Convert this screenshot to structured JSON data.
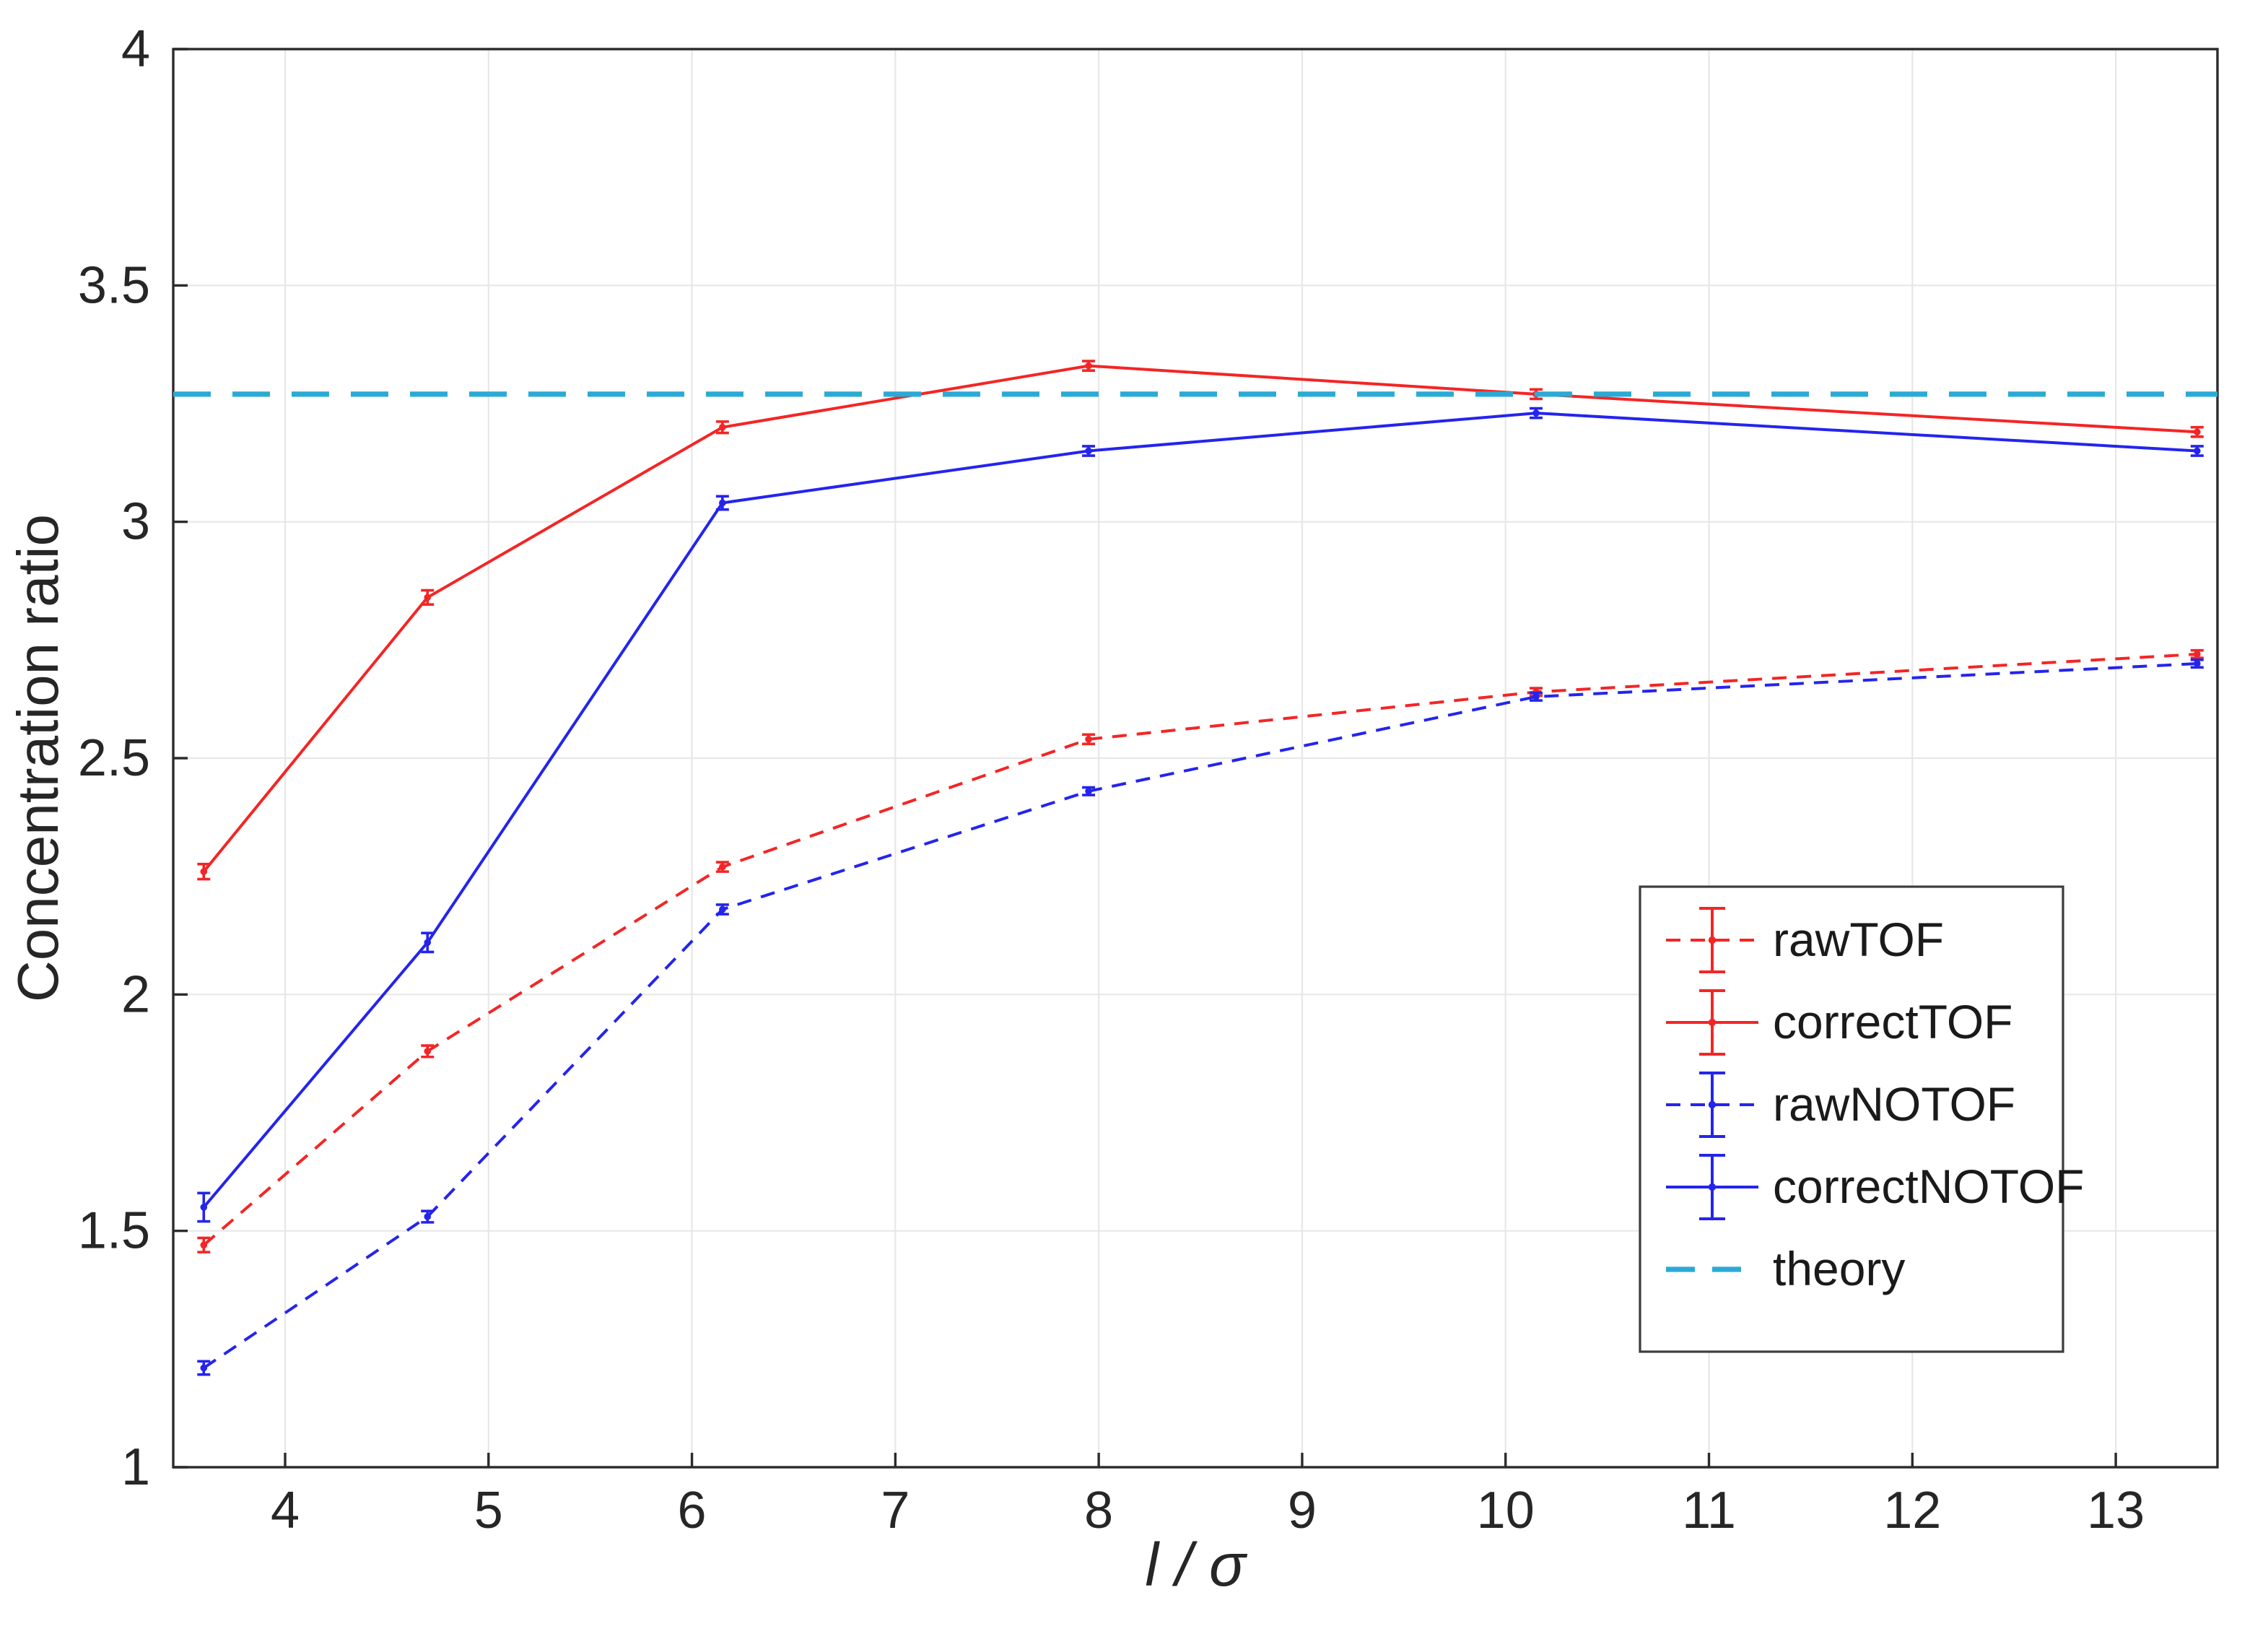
{
  "figure": {
    "background": "#ffffff",
    "axis_color": "#2b2b2b",
    "grid_color": "#e7e7e7",
    "tick_label_color": "#262626"
  },
  "chart_data": {
    "type": "line",
    "title": "",
    "xlabel": "l / σ",
    "ylabel": "Concentration ratio",
    "xlim": [
      3.45,
      13.5
    ],
    "ylim": [
      1,
      4
    ],
    "xticks": [
      4,
      5,
      6,
      7,
      8,
      9,
      10,
      11,
      12,
      13
    ],
    "yticks": [
      1,
      1.5,
      2,
      2.5,
      3,
      3.5,
      4
    ],
    "grid": true,
    "legend_position": "lower right",
    "x": [
      3.6,
      4.7,
      6.15,
      7.95,
      10.15,
      13.4
    ],
    "series": [
      {
        "name": "rawTOF",
        "color": "#f42525",
        "style": "dashed",
        "marker": "point",
        "values": [
          1.47,
          1.88,
          2.27,
          2.54,
          2.64,
          2.72
        ],
        "errors": [
          0.015,
          0.012,
          0.01,
          0.01,
          0.008,
          0.008
        ]
      },
      {
        "name": "correctTOF",
        "color": "#f42525",
        "style": "solid",
        "marker": "point",
        "values": [
          2.26,
          2.84,
          3.2,
          3.33,
          3.27,
          3.19
        ],
        "errors": [
          0.016,
          0.015,
          0.012,
          0.01,
          0.01,
          0.01
        ]
      },
      {
        "name": "rawNOTOF",
        "color": "#2424ee",
        "style": "dashed",
        "marker": "point",
        "values": [
          1.21,
          1.53,
          2.18,
          2.43,
          2.63,
          2.7
        ],
        "errors": [
          0.014,
          0.012,
          0.01,
          0.008,
          0.008,
          0.008
        ]
      },
      {
        "name": "correctNOTOF",
        "color": "#2424ee",
        "style": "solid",
        "marker": "point",
        "values": [
          1.55,
          2.11,
          3.04,
          3.15,
          3.23,
          3.15
        ],
        "errors": [
          0.03,
          0.02,
          0.014,
          0.01,
          0.01,
          0.01
        ]
      },
      {
        "name": "theory",
        "color": "#2aaad5",
        "style": "dashed",
        "type": "hline",
        "value": 3.27
      }
    ]
  }
}
